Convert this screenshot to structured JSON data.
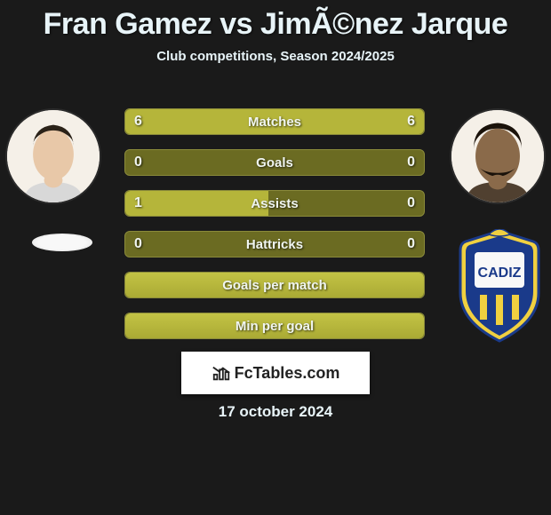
{
  "colors": {
    "background": "#1a1a1a",
    "text_light": "#e8f4f8",
    "bar_dark": "#6b6b22",
    "bar_light": "#b5b53a",
    "bar_full_top": "#c3c345",
    "bar_full_bottom": "#aaaa34",
    "logo_bg": "#ffffff",
    "logo_text": "#222222"
  },
  "title": {
    "player_left": "Fran Gamez",
    "vs": "vs",
    "player_right": "JimÃ©nez Jarque",
    "fontsize": 34,
    "fontweight": 900
  },
  "subtitle": {
    "text": "Club competitions, Season 2024/2025",
    "fontsize": 15
  },
  "player_left": {
    "avatar_bg": "#f5f0e8",
    "skin": "#e8c8a8",
    "hair": "#2b2218"
  },
  "player_right": {
    "avatar_bg": "#f5f0e8",
    "skin": "#8a6a4a",
    "hair": "#1a120a"
  },
  "team_right": {
    "name": "Cadiz",
    "shield_blue": "#1a3a8a",
    "shield_yellow": "#f0d040",
    "shield_white": "#f8f8f8"
  },
  "bars": {
    "label_fontsize": 15,
    "value_fontsize": 16,
    "height": 30,
    "gap": 16,
    "items": [
      {
        "label": "Matches",
        "left": "6",
        "right": "6",
        "left_pct": 50,
        "right_pct": 50
      },
      {
        "label": "Goals",
        "left": "0",
        "right": "0",
        "left_pct": 0,
        "right_pct": 0
      },
      {
        "label": "Assists",
        "left": "1",
        "right": "0",
        "left_pct": 48,
        "right_pct": 0
      },
      {
        "label": "Hattricks",
        "left": "0",
        "right": "0",
        "left_pct": 0,
        "right_pct": 0
      },
      {
        "label": "Goals per match",
        "left": "",
        "right": "",
        "full": true
      },
      {
        "label": "Min per goal",
        "left": "",
        "right": "",
        "full": true
      }
    ]
  },
  "logo": {
    "text": "FcTables.com",
    "fontsize": 18
  },
  "date": {
    "text": "17 october 2024",
    "fontsize": 17
  }
}
